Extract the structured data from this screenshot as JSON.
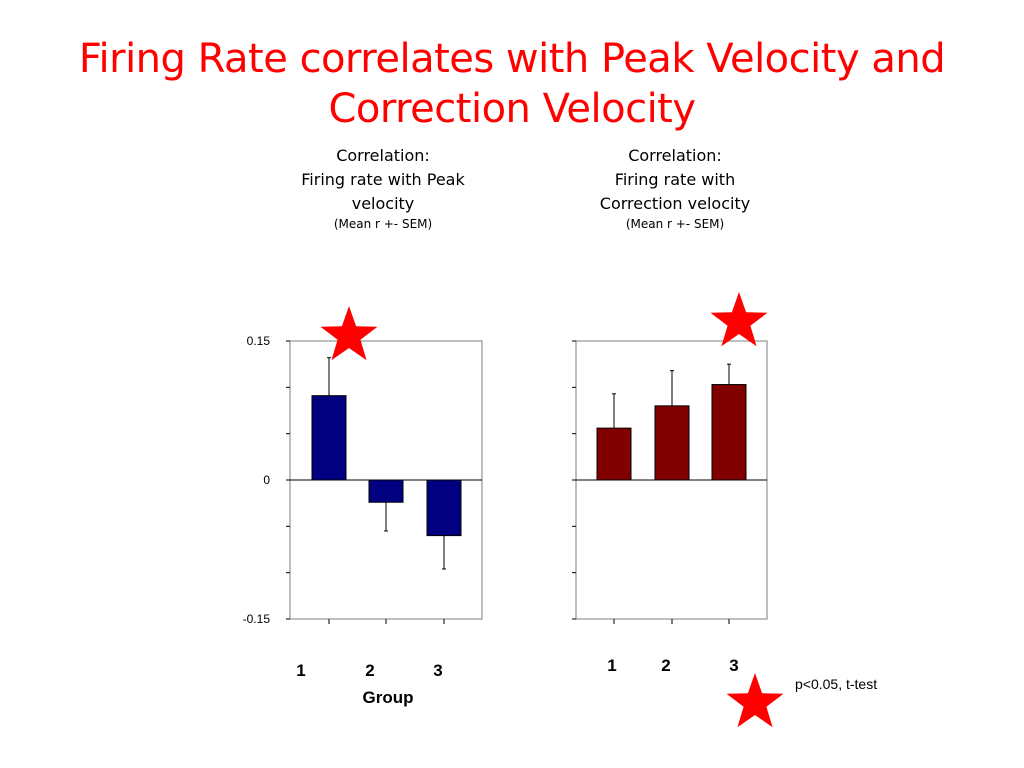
{
  "title": "Firing Rate correlates with Peak Velocity and Correction Velocity",
  "colors": {
    "title": "#ff0000",
    "star": "#ff0000",
    "left_bars": "#000080",
    "right_bars": "#800000"
  },
  "legend": {
    "text": "p<0.05, t-test",
    "icon": "star-icon"
  },
  "chart_data": [
    {
      "type": "bar",
      "title_lines": [
        "Correlation:",
        "Firing rate with Peak",
        "velocity"
      ],
      "note": "(Mean r +- SEM)",
      "categories": [
        "1",
        "2",
        "3"
      ],
      "xlabel": "Group",
      "ytick_labels": [
        "0.15",
        "0",
        "-0.15"
      ],
      "yticks": [
        0.15,
        0,
        -0.15
      ],
      "ylim": [
        -0.15,
        0.15
      ],
      "values": [
        0.091,
        -0.024,
        -0.06
      ],
      "errors": [
        0.041,
        0.031,
        0.036
      ],
      "significant": [
        "1"
      ]
    },
    {
      "type": "bar",
      "title_lines": [
        "Correlation:",
        "Firing rate with",
        "Correction velocity"
      ],
      "note": "(Mean r +- SEM)",
      "categories": [
        "1",
        "2",
        "3"
      ],
      "xlabel": "",
      "ytick_labels": [],
      "ylim": [
        -0.15,
        0.15
      ],
      "values": [
        0.056,
        0.08,
        0.103
      ],
      "errors": [
        0.037,
        0.038,
        0.022
      ],
      "significant": [
        "3"
      ]
    }
  ]
}
